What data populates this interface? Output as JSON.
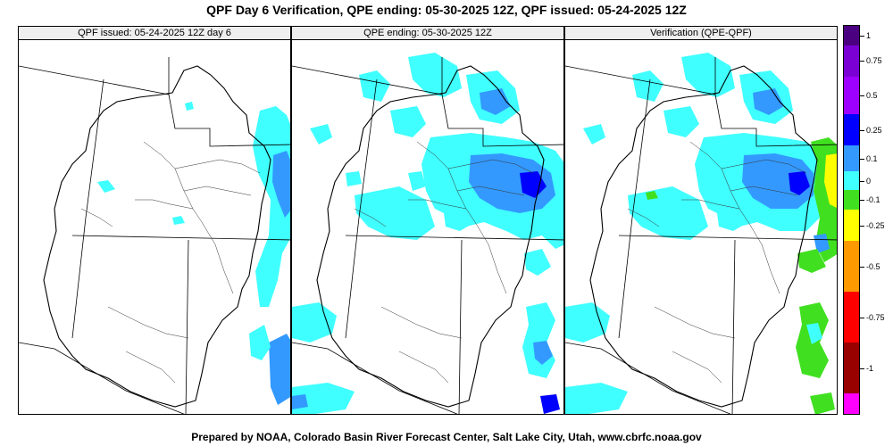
{
  "title": "QPF Day 6 Verification, QPE ending: 05-30-2025 12Z, QPF issued: 05-24-2025 12Z",
  "panels": [
    {
      "title": "QPF issued: 05-24-2025 12Z day 6"
    },
    {
      "title": "QPE ending: 05-30-2025 12Z"
    },
    {
      "title": "Verification (QPE-QPF)"
    }
  ],
  "colorbar": {
    "segments": [
      {
        "color": "#4b0082",
        "label": "1"
      },
      {
        "color": "#7a00d4",
        "label": "0.75"
      },
      {
        "color": "#9e00ff",
        "label": "0.5"
      },
      {
        "color": "#0000ff",
        "label": "0.25"
      },
      {
        "color": "#3399ff",
        "label": "0.1"
      },
      {
        "color": "#40ffff",
        "label": "0"
      },
      {
        "color": "#40e020",
        "label": "-0.1"
      },
      {
        "color": "#ffff00",
        "label": "-0.25"
      },
      {
        "color": "#ff9900",
        "label": "-0.5"
      },
      {
        "color": "#ff0000",
        "label": "-0.75"
      },
      {
        "color": "#990000",
        "label": "-1"
      },
      {
        "color": "#ff00ff",
        "label": ""
      }
    ]
  },
  "footer": "Prepared by NOAA, Colorado Basin River Forecast Center, Salt Lake City, Utah, www.cbrfc.noaa.gov"
}
